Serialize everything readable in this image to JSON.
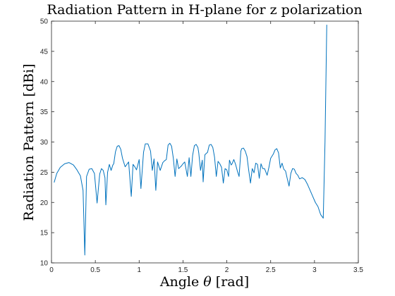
{
  "chart_data": {
    "type": "line",
    "title": "Radiation Pattern in H-plane for z polarization",
    "xlabel_prefix": "Angle ",
    "xlabel_symbol": "θ",
    "xlabel_suffix": " [rad]",
    "ylabel": "Radiation Pattern [dBi]",
    "xlim": [
      0,
      3.5
    ],
    "ylim": [
      10,
      50
    ],
    "x_ticks": [
      0,
      0.5,
      1,
      1.5,
      2,
      2.5,
      3,
      3.5
    ],
    "x_tick_labels": [
      "0",
      "0.5",
      "1",
      "1.5",
      "2",
      "2.5",
      "3",
      "3.5"
    ],
    "y_ticks": [
      10,
      15,
      20,
      25,
      30,
      35,
      40,
      45,
      50
    ],
    "y_tick_labels": [
      "10",
      "15",
      "20",
      "25",
      "30",
      "35",
      "40",
      "45",
      "50"
    ],
    "grid": false,
    "line_color": "#0072BD",
    "series": [
      {
        "x": [
          0.03,
          0.06,
          0.1,
          0.15,
          0.2,
          0.25,
          0.29,
          0.33,
          0.36,
          0.38,
          0.4,
          0.43,
          0.46,
          0.49,
          0.52,
          0.55,
          0.57,
          0.59,
          0.61,
          0.62,
          0.64,
          0.66,
          0.68,
          0.7,
          0.71,
          0.73,
          0.75,
          0.77,
          0.79,
          0.81,
          0.84,
          0.86,
          0.88,
          0.91,
          0.93,
          0.95,
          0.97,
          1.0,
          1.02,
          1.05,
          1.07,
          1.1,
          1.13,
          1.15,
          1.17,
          1.19,
          1.21,
          1.24,
          1.27,
          1.29,
          1.31,
          1.33,
          1.35,
          1.37,
          1.39,
          1.41,
          1.43,
          1.45,
          1.48,
          1.5,
          1.52,
          1.55,
          1.57,
          1.59,
          1.61,
          1.63,
          1.65,
          1.67,
          1.68,
          1.7,
          1.72,
          1.73,
          1.75,
          1.78,
          1.8,
          1.82,
          1.84,
          1.86,
          1.88,
          1.9,
          1.92,
          1.94,
          1.96,
          1.98,
          2.0,
          2.02,
          2.03,
          2.05,
          2.06,
          2.08,
          2.1,
          2.12,
          2.14,
          2.16,
          2.17,
          2.19,
          2.21,
          2.23,
          2.25,
          2.27,
          2.29,
          2.31,
          2.33,
          2.35,
          2.37,
          2.39,
          2.41,
          2.43,
          2.46,
          2.48,
          2.5,
          2.53,
          2.55,
          2.57,
          2.59,
          2.61,
          2.63,
          2.65,
          2.67,
          2.69,
          2.71,
          2.73,
          2.75,
          2.77,
          2.79,
          2.81,
          2.83,
          2.86,
          2.89,
          2.92,
          2.95,
          2.98,
          3.01,
          3.04,
          3.07,
          3.1,
          3.12,
          3.14
        ],
        "y": [
          23.3,
          24.8,
          25.8,
          26.4,
          26.6,
          26.2,
          25.4,
          24.4,
          22.0,
          11.3,
          24.3,
          25.5,
          25.6,
          24.8,
          19.9,
          24.7,
          25.6,
          25.3,
          24.1,
          19.6,
          25.0,
          26.3,
          25.3,
          26.2,
          26.4,
          28.4,
          29.3,
          29.4,
          28.8,
          27.3,
          25.9,
          26.3,
          26.7,
          21.0,
          26.3,
          25.9,
          25.4,
          27.1,
          22.3,
          28.3,
          29.7,
          29.7,
          28.5,
          25.3,
          27.2,
          22.0,
          26.7,
          25.3,
          26.6,
          26.9,
          27.1,
          29.5,
          29.8,
          29.3,
          27.3,
          24.3,
          27.2,
          25.6,
          26.0,
          26.4,
          26.7,
          24.3,
          27.4,
          24.3,
          27.8,
          29.4,
          29.6,
          29.1,
          28.2,
          25.3,
          27.0,
          23.4,
          27.9,
          28.3,
          29.5,
          29.6,
          29.1,
          27.5,
          24.3,
          26.8,
          26.4,
          25.8,
          23.2,
          25.6,
          25.4,
          24.3,
          27.0,
          26.2,
          26.4,
          27.1,
          26.3,
          25.2,
          24.3,
          28.5,
          28.9,
          29.0,
          28.5,
          27.6,
          25.3,
          23.2,
          25.6,
          24.9,
          26.5,
          26.3,
          24.0,
          26.4,
          25.6,
          25.6,
          24.5,
          25.8,
          27.3,
          28.0,
          28.7,
          28.9,
          28.2,
          25.7,
          26.5,
          25.5,
          25.2,
          23.9,
          22.7,
          24.8,
          25.6,
          25.5,
          24.8,
          24.5,
          23.9,
          24.1,
          23.8,
          23.0,
          22.0,
          21.0,
          20.0,
          19.3,
          18.0,
          17.4,
          30.0,
          49.4
        ]
      }
    ]
  }
}
